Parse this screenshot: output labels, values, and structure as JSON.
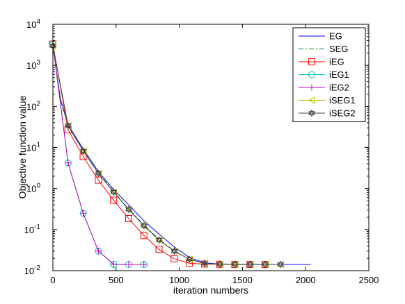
{
  "chart_data": {
    "type": "line",
    "xlabel": "iteration numbers",
    "ylabel": "Objective function value",
    "xlim": [
      0,
      2500
    ],
    "ylim": [
      0.01,
      10000
    ],
    "yscale": "log",
    "grid": false,
    "legend_position": "top-right",
    "x_ticks": [
      "0",
      "500",
      "1000",
      "1500",
      "2000",
      "2500"
    ],
    "y_ticks": [
      {
        "base": "10",
        "exp": "-2",
        "value": 0.01
      },
      {
        "base": "10",
        "exp": "-1",
        "value": 0.1
      },
      {
        "base": "10",
        "exp": "0",
        "value": 1
      },
      {
        "base": "10",
        "exp": "1",
        "value": 10
      },
      {
        "base": "10",
        "exp": "2",
        "value": 100
      },
      {
        "base": "10",
        "exp": "3",
        "value": 1000
      },
      {
        "base": "10",
        "exp": "4",
        "value": 10000
      }
    ],
    "series": [
      {
        "name": "EG",
        "color": "#0000ff",
        "line": "solid",
        "marker": "none",
        "points": [
          [
            0,
            3000
          ],
          [
            60,
            150
          ],
          [
            120,
            36
          ],
          [
            240,
            9.2
          ],
          [
            360,
            2.6
          ],
          [
            480,
            0.95
          ],
          [
            600,
            0.4
          ],
          [
            720,
            0.165
          ],
          [
            840,
            0.078
          ],
          [
            960,
            0.038
          ],
          [
            1080,
            0.021
          ],
          [
            1200,
            0.0155
          ],
          [
            1320,
            0.0146
          ],
          [
            1500,
            0.0143
          ],
          [
            1800,
            0.0142
          ],
          [
            2040,
            0.0142
          ]
        ]
      },
      {
        "name": "SEG",
        "color": "#008000",
        "line": "dashdot",
        "marker": "none",
        "points": [
          [
            0,
            3000
          ],
          [
            60,
            140
          ],
          [
            120,
            34
          ],
          [
            240,
            8.4
          ],
          [
            360,
            2.4
          ],
          [
            480,
            0.85
          ],
          [
            600,
            0.32
          ],
          [
            720,
            0.13
          ],
          [
            840,
            0.058
          ],
          [
            960,
            0.03
          ],
          [
            1080,
            0.019
          ],
          [
            1200,
            0.015
          ],
          [
            1320,
            0.0145
          ],
          [
            1500,
            0.0143
          ],
          [
            1800,
            0.0142
          ]
        ]
      },
      {
        "name": "iEG",
        "color": "#ff0000",
        "line": "solid",
        "marker": "square",
        "points": [
          [
            0,
            3300
          ],
          [
            120,
            27
          ],
          [
            240,
            6
          ],
          [
            360,
            1.6
          ],
          [
            480,
            0.52
          ],
          [
            600,
            0.185
          ],
          [
            720,
            0.072
          ],
          [
            840,
            0.033
          ],
          [
            960,
            0.0195
          ],
          [
            1080,
            0.0152
          ],
          [
            1200,
            0.0145
          ],
          [
            1320,
            0.0143
          ],
          [
            1440,
            0.0142
          ],
          [
            1560,
            0.0142
          ],
          [
            1680,
            0.0142
          ]
        ]
      },
      {
        "name": "iEG1",
        "color": "#00bfbf",
        "line": "solid",
        "marker": "circle",
        "points": [
          [
            0,
            3200
          ],
          [
            120,
            4.2
          ],
          [
            240,
            0.25
          ],
          [
            360,
            0.03
          ],
          [
            480,
            0.0143
          ],
          [
            600,
            0.0142
          ],
          [
            720,
            0.0142
          ]
        ]
      },
      {
        "name": "iEG2",
        "color": "#bf00bf",
        "line": "solid",
        "marker": "plus",
        "points": [
          [
            0,
            3200
          ],
          [
            120,
            4.2
          ],
          [
            240,
            0.25
          ],
          [
            360,
            0.03
          ],
          [
            480,
            0.0143
          ],
          [
            600,
            0.0142
          ],
          [
            720,
            0.0142
          ]
        ]
      },
      {
        "name": "iSEG1",
        "color": "#bfbf00",
        "line": "solid",
        "marker": "triangle-left",
        "points": [
          [
            0,
            3000
          ],
          [
            120,
            34
          ],
          [
            240,
            8.2
          ],
          [
            360,
            2.35
          ],
          [
            480,
            0.82
          ],
          [
            600,
            0.31
          ],
          [
            720,
            0.125
          ],
          [
            840,
            0.056
          ],
          [
            960,
            0.03
          ],
          [
            1080,
            0.019
          ],
          [
            1200,
            0.015
          ],
          [
            1320,
            0.0144
          ],
          [
            1440,
            0.0143
          ],
          [
            1560,
            0.0142
          ],
          [
            1680,
            0.0142
          ],
          [
            1800,
            0.0142
          ]
        ]
      },
      {
        "name": "iSEG2",
        "color": "#404040",
        "line": "solid",
        "marker": "hexagram",
        "points": [
          [
            0,
            3000
          ],
          [
            120,
            34
          ],
          [
            240,
            8.2
          ],
          [
            360,
            2.35
          ],
          [
            480,
            0.82
          ],
          [
            600,
            0.31
          ],
          [
            720,
            0.125
          ],
          [
            840,
            0.056
          ],
          [
            960,
            0.03
          ],
          [
            1080,
            0.019
          ],
          [
            1200,
            0.015
          ],
          [
            1320,
            0.0144
          ],
          [
            1440,
            0.0143
          ],
          [
            1560,
            0.0142
          ],
          [
            1680,
            0.0142
          ],
          [
            1800,
            0.0142
          ]
        ]
      }
    ]
  }
}
